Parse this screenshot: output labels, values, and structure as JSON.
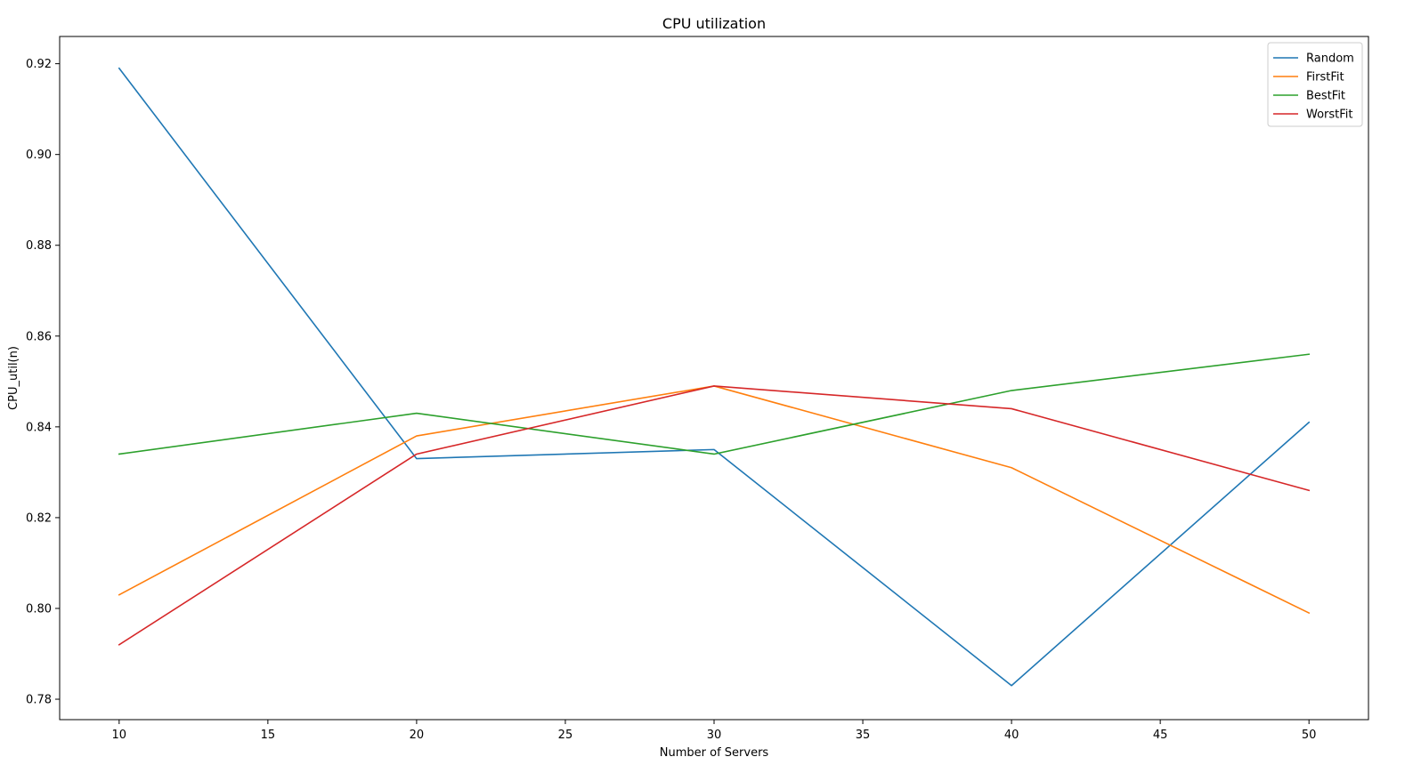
{
  "chart_data": {
    "type": "line",
    "title": "CPU utilization",
    "xlabel": "Number of Servers",
    "ylabel": "CPU_util(n)",
    "x": [
      10,
      20,
      30,
      40,
      50
    ],
    "xlim": [
      8,
      52
    ],
    "ylim": [
      0.7755,
      0.926
    ],
    "xticks": [
      10,
      15,
      20,
      25,
      30,
      35,
      40,
      45,
      50
    ],
    "yticks": [
      0.78,
      0.8,
      0.82,
      0.84,
      0.86,
      0.88,
      0.9,
      0.92
    ],
    "grid": false,
    "legend_position": "top-right",
    "series": [
      {
        "name": "Random",
        "color": "#1f77b4",
        "values": [
          0.919,
          0.833,
          0.835,
          0.783,
          0.841
        ]
      },
      {
        "name": "FirstFit",
        "color": "#ff7f0e",
        "values": [
          0.803,
          0.838,
          0.849,
          0.831,
          0.799
        ]
      },
      {
        "name": "BestFit",
        "color": "#2ca02c",
        "values": [
          0.834,
          0.843,
          0.834,
          0.848,
          0.856
        ]
      },
      {
        "name": "WorstFit",
        "color": "#d62728",
        "values": [
          0.792,
          0.834,
          0.849,
          0.844,
          0.826
        ]
      }
    ]
  }
}
